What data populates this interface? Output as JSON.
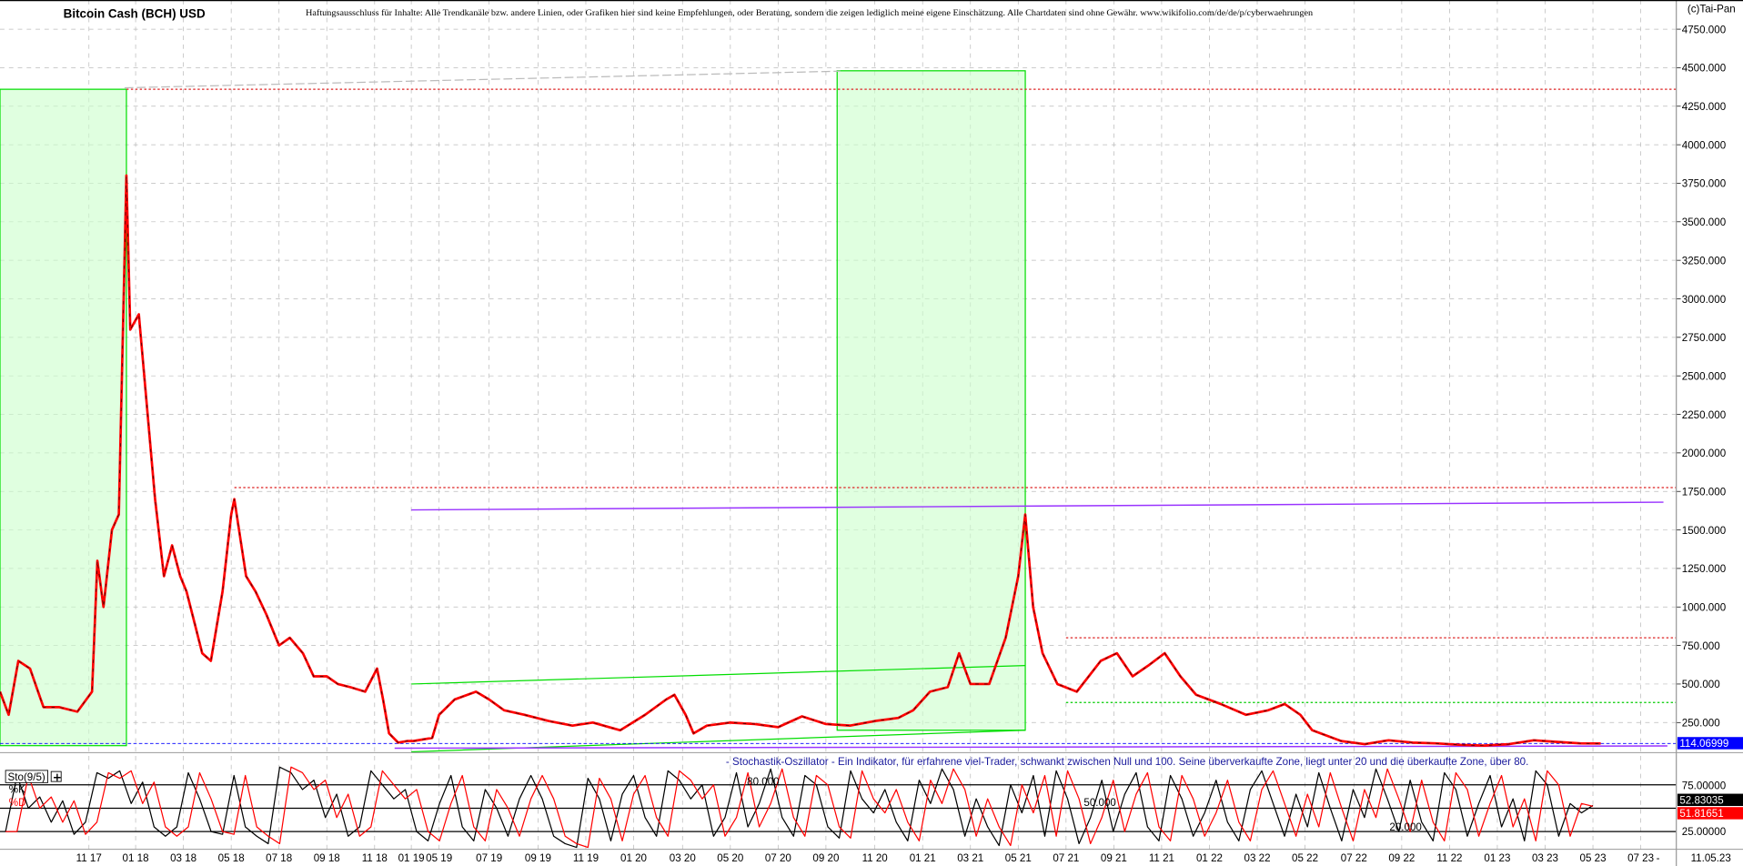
{
  "header": {
    "title": "Bitcoin Cash (BCH) USD",
    "disclaimer": "Haftungsausschluss für Inhalte: Alle Trendkanäle bzw. andere Linien, oder Grafiken hier sind keine Empfehlungen, oder Beratung, sondern die zeigen lediglich meine eigene Einschätzung. Alle Chartdaten sind ohne Gewähr. www.wikifolio.com/de/de/p/cyberwaehrungen",
    "copyright": "(c)Tai-Pan"
  },
  "colors": {
    "price": "#ff0000",
    "price_overlay": "#000000",
    "zone": "#ccffcc",
    "zone_border": "#00dd00",
    "resistance": "#dd2222",
    "trend": "#9933ff",
    "last_price_box": "#0000ff",
    "k_line": "#000000",
    "d_line": "#ff0000"
  },
  "chart_data": [
    {
      "type": "line",
      "title": "Bitcoin Cash (BCH) USD",
      "ylim": [
        0,
        4750
      ],
      "yticks": [
        "250.000",
        "500.000",
        "750.000",
        "1000.000",
        "1250.000",
        "1500.000",
        "1750.000",
        "2000.000",
        "2250.000",
        "2500.000",
        "2750.000",
        "3000.000",
        "3250.000",
        "3500.000",
        "3750.000",
        "4000.000",
        "4250.000",
        "4500.000",
        "4750.000"
      ],
      "ytick_values": [
        250,
        500,
        750,
        1000,
        1250,
        1500,
        1750,
        2000,
        2250,
        2500,
        2750,
        3000,
        3250,
        3500,
        3750,
        4000,
        4250,
        4500,
        4750
      ],
      "xticks": [
        "11 17",
        "01 18",
        "03 18",
        "05 18",
        "07 18",
        "09 18",
        "11 18",
        "01 19",
        "05 19",
        "07 19",
        "09 19",
        "11 19",
        "01 20",
        "03 20",
        "05 20",
        "07 20",
        "09 20",
        "11 20",
        "01 21",
        "03 21",
        "05 21",
        "07 21",
        "09 21",
        "11 21",
        "01 22",
        "03 22",
        "05 22",
        "07 22",
        "09 22",
        "11 22",
        "01 23",
        "03 23",
        "05 23",
        "07 23"
      ],
      "xtick_dates": [
        "2017-11-01",
        "2018-01-01",
        "2018-03-01",
        "2018-05-01",
        "2018-07-01",
        "2018-09-01",
        "2018-11-01",
        "2019-01-01",
        "2019-05-01",
        "2019-07-01",
        "2019-09-01",
        "2019-11-01",
        "2020-01-01",
        "2020-03-01",
        "2020-05-01",
        "2020-07-01",
        "2020-09-01",
        "2020-11-01",
        "2021-01-01",
        "2021-03-01",
        "2021-05-01",
        "2021-07-01",
        "2021-09-01",
        "2021-11-01",
        "2022-01-01",
        "2022-03-01",
        "2022-05-01",
        "2022-07-01",
        "2022-09-01",
        "2022-11-01",
        "2023-01-01",
        "2023-03-01",
        "2023-05-01",
        "2023-07-01"
      ],
      "grid": true,
      "last_value": "114.06999",
      "last_date": "11.05.23",
      "date_separator": "-",
      "series": [
        {
          "points": [
            [
              "2017-08-01",
              450
            ],
            [
              "2017-08-10",
              300
            ],
            [
              "2017-08-20",
              650
            ],
            [
              "2017-09-01",
              600
            ],
            [
              "2017-09-15",
              350
            ],
            [
              "2017-10-01",
              350
            ],
            [
              "2017-10-20",
              320
            ],
            [
              "2017-11-05",
              450
            ],
            [
              "2017-11-12",
              1300
            ],
            [
              "2017-11-20",
              1000
            ],
            [
              "2017-12-01",
              1500
            ],
            [
              "2017-12-10",
              1600
            ],
            [
              "2017-12-20",
              3800
            ],
            [
              "2017-12-25",
              2800
            ],
            [
              "2018-01-05",
              2900
            ],
            [
              "2018-01-15",
              2300
            ],
            [
              "2018-01-25",
              1700
            ],
            [
              "2018-02-05",
              1200
            ],
            [
              "2018-02-15",
              1400
            ],
            [
              "2018-02-25",
              1200
            ],
            [
              "2018-03-05",
              1100
            ],
            [
              "2018-03-15",
              900
            ],
            [
              "2018-03-25",
              700
            ],
            [
              "2018-04-05",
              650
            ],
            [
              "2018-04-20",
              1100
            ],
            [
              "2018-05-01",
              1600
            ],
            [
              "2018-05-05",
              1700
            ],
            [
              "2018-05-20",
              1200
            ],
            [
              "2018-06-01",
              1100
            ],
            [
              "2018-06-15",
              950
            ],
            [
              "2018-07-01",
              750
            ],
            [
              "2018-07-15",
              800
            ],
            [
              "2018-08-01",
              700
            ],
            [
              "2018-08-15",
              550
            ],
            [
              "2018-09-01",
              550
            ],
            [
              "2018-09-15",
              500
            ],
            [
              "2018-10-01",
              480
            ],
            [
              "2018-10-20",
              450
            ],
            [
              "2018-11-05",
              600
            ],
            [
              "2018-11-15",
              400
            ],
            [
              "2018-11-25",
              180
            ],
            [
              "2018-12-10",
              120
            ],
            [
              "2018-12-25",
              130
            ],
            [
              "2019-01-10",
              130
            ],
            [
              "2019-04-01",
              150
            ],
            [
              "2019-05-01",
              300
            ],
            [
              "2019-05-20",
              400
            ],
            [
              "2019-06-15",
              450
            ],
            [
              "2019-07-01",
              400
            ],
            [
              "2019-07-20",
              330
            ],
            [
              "2019-08-15",
              300
            ],
            [
              "2019-09-15",
              260
            ],
            [
              "2019-10-15",
              230
            ],
            [
              "2019-11-10",
              250
            ],
            [
              "2019-12-15",
              200
            ],
            [
              "2020-01-15",
              300
            ],
            [
              "2020-02-10",
              400
            ],
            [
              "2020-02-20",
              430
            ],
            [
              "2020-03-05",
              300
            ],
            [
              "2020-03-15",
              180
            ],
            [
              "2020-04-01",
              230
            ],
            [
              "2020-05-01",
              250
            ],
            [
              "2020-06-01",
              240
            ],
            [
              "2020-07-01",
              220
            ],
            [
              "2020-08-01",
              290
            ],
            [
              "2020-09-01",
              240
            ],
            [
              "2020-10-01",
              230
            ],
            [
              "2020-11-01",
              260
            ],
            [
              "2020-12-01",
              280
            ],
            [
              "2020-12-20",
              330
            ],
            [
              "2021-01-10",
              450
            ],
            [
              "2021-02-01",
              480
            ],
            [
              "2021-02-15",
              700
            ],
            [
              "2021-03-01",
              500
            ],
            [
              "2021-03-25",
              500
            ],
            [
              "2021-04-15",
              800
            ],
            [
              "2021-05-01",
              1200
            ],
            [
              "2021-05-10",
              1600
            ],
            [
              "2021-05-20",
              1000
            ],
            [
              "2021-06-01",
              700
            ],
            [
              "2021-06-20",
              500
            ],
            [
              "2021-07-15",
              450
            ],
            [
              "2021-08-15",
              650
            ],
            [
              "2021-09-05",
              700
            ],
            [
              "2021-09-25",
              550
            ],
            [
              "2021-10-15",
              620
            ],
            [
              "2021-11-05",
              700
            ],
            [
              "2021-11-25",
              550
            ],
            [
              "2021-12-15",
              430
            ],
            [
              "2022-01-15",
              370
            ],
            [
              "2022-02-15",
              300
            ],
            [
              "2022-03-15",
              330
            ],
            [
              "2022-04-05",
              370
            ],
            [
              "2022-04-25",
              300
            ],
            [
              "2022-05-10",
              200
            ],
            [
              "2022-06-15",
              130
            ],
            [
              "2022-07-15",
              110
            ],
            [
              "2022-08-15",
              135
            ],
            [
              "2022-09-15",
              120
            ],
            [
              "2022-10-15",
              115
            ],
            [
              "2022-11-15",
              105
            ],
            [
              "2022-12-15",
              100
            ],
            [
              "2023-01-15",
              110
            ],
            [
              "2023-02-15",
              135
            ],
            [
              "2023-03-15",
              125
            ],
            [
              "2023-04-15",
              115
            ],
            [
              "2023-05-11",
              114.07
            ]
          ]
        }
      ],
      "annotations": {
        "resistance_lines": [
          {
            "from": "2017-12-20",
            "value": 4360
          },
          {
            "from": "2018-05-05",
            "value": 1775
          },
          {
            "from": "2021-07-01",
            "value": 800
          }
        ],
        "support_line": {
          "from": "2021-07-01",
          "value": 380
        },
        "trend_line": {
          "from": [
            "2019-01-01",
            1630
          ],
          "to": [
            "2023-07-30",
            1680
          ]
        },
        "zones": [
          {
            "from": "2017-08-01",
            "to": "2017-12-20",
            "top": 4360,
            "bottom": 100
          },
          {
            "from": "2020-09-15",
            "to": "2021-05-10",
            "top": 4480,
            "bottom": 200
          }
        ],
        "channel": {
          "upper": [
            [
              "2019-01-01",
              500
            ],
            [
              "2021-05-10",
              620
            ]
          ],
          "lower": [
            [
              "2019-01-01",
              60
            ],
            [
              "2021-05-10",
              200
            ]
          ]
        }
      }
    },
    {
      "type": "line",
      "indicator": "Sto(9/5)",
      "description": "- Stochastik-Oszillator - Ein Indikator, für erfahrene viel-Trader, schwankt zwischen Null und 100. Seine überverkaufte Zone, liegt unter 20 und die überkaufte Zone, über 80.",
      "ylim": [
        0,
        100
      ],
      "levels": [
        75,
        50,
        25
      ],
      "level_labels": [
        "75.00000",
        "25.00000"
      ],
      "inline_labels": [
        "80.000",
        "50.000",
        "20.000"
      ],
      "k_label": "%K",
      "d_label": "%D",
      "k_last": "52.83035",
      "d_last": "51.81651",
      "series": [
        {
          "name": "%K",
          "values": [
            25,
            85,
            50,
            62,
            35,
            58,
            22,
            35,
            88,
            82,
            90,
            55,
            78,
            30,
            20,
            30,
            88,
            60,
            25,
            22,
            85,
            30,
            20,
            12,
            94,
            88,
            70,
            80,
            40,
            65,
            20,
            30,
            90,
            75,
            60,
            70,
            25,
            15,
            55,
            85,
            30,
            15,
            70,
            50,
            20,
            60,
            85,
            60,
            20,
            12,
            8,
            82,
            60,
            15,
            65,
            85,
            40,
            20,
            90,
            80,
            60,
            75,
            20,
            40,
            88,
            30,
            55,
            92,
            40,
            20,
            85,
            75,
            30,
            18,
            90,
            60,
            45,
            70,
            35,
            15,
            80,
            55,
            92,
            70,
            20,
            60,
            30,
            10,
            75,
            45,
            85,
            20,
            90,
            60,
            12,
            40,
            80,
            25,
            65,
            88,
            30,
            15,
            85,
            60,
            20,
            45,
            80,
            35,
            15,
            70,
            90,
            55,
            20,
            65,
            30,
            88,
            50,
            15,
            70,
            40,
            92,
            60,
            25,
            80,
            35,
            15,
            88,
            70,
            20,
            55,
            85,
            30,
            60,
            15,
            90,
            75,
            20,
            55,
            45,
            53
          ]
        },
        {
          "name": "%D",
          "values": [
            25,
            25,
            85,
            50,
            62,
            35,
            58,
            22,
            35,
            88,
            82,
            90,
            55,
            78,
            30,
            20,
            30,
            88,
            60,
            25,
            22,
            85,
            30,
            20,
            12,
            94,
            88,
            70,
            80,
            40,
            65,
            20,
            30,
            90,
            75,
            60,
            70,
            25,
            15,
            55,
            85,
            30,
            15,
            70,
            50,
            20,
            60,
            85,
            60,
            20,
            12,
            8,
            82,
            60,
            15,
            65,
            85,
            40,
            20,
            90,
            80,
            60,
            75,
            20,
            40,
            88,
            30,
            55,
            92,
            40,
            20,
            85,
            75,
            30,
            18,
            90,
            60,
            45,
            70,
            35,
            15,
            80,
            55,
            92,
            70,
            20,
            60,
            30,
            10,
            75,
            45,
            85,
            20,
            90,
            60,
            12,
            40,
            80,
            25,
            65,
            88,
            30,
            15,
            85,
            60,
            20,
            45,
            80,
            35,
            15,
            70,
            90,
            55,
            20,
            65,
            30,
            88,
            50,
            15,
            70,
            40,
            92,
            60,
            25,
            80,
            35,
            15,
            88,
            70,
            20,
            55,
            85,
            30,
            60,
            15,
            90,
            75,
            20,
            55,
            52
          ]
        }
      ]
    }
  ]
}
